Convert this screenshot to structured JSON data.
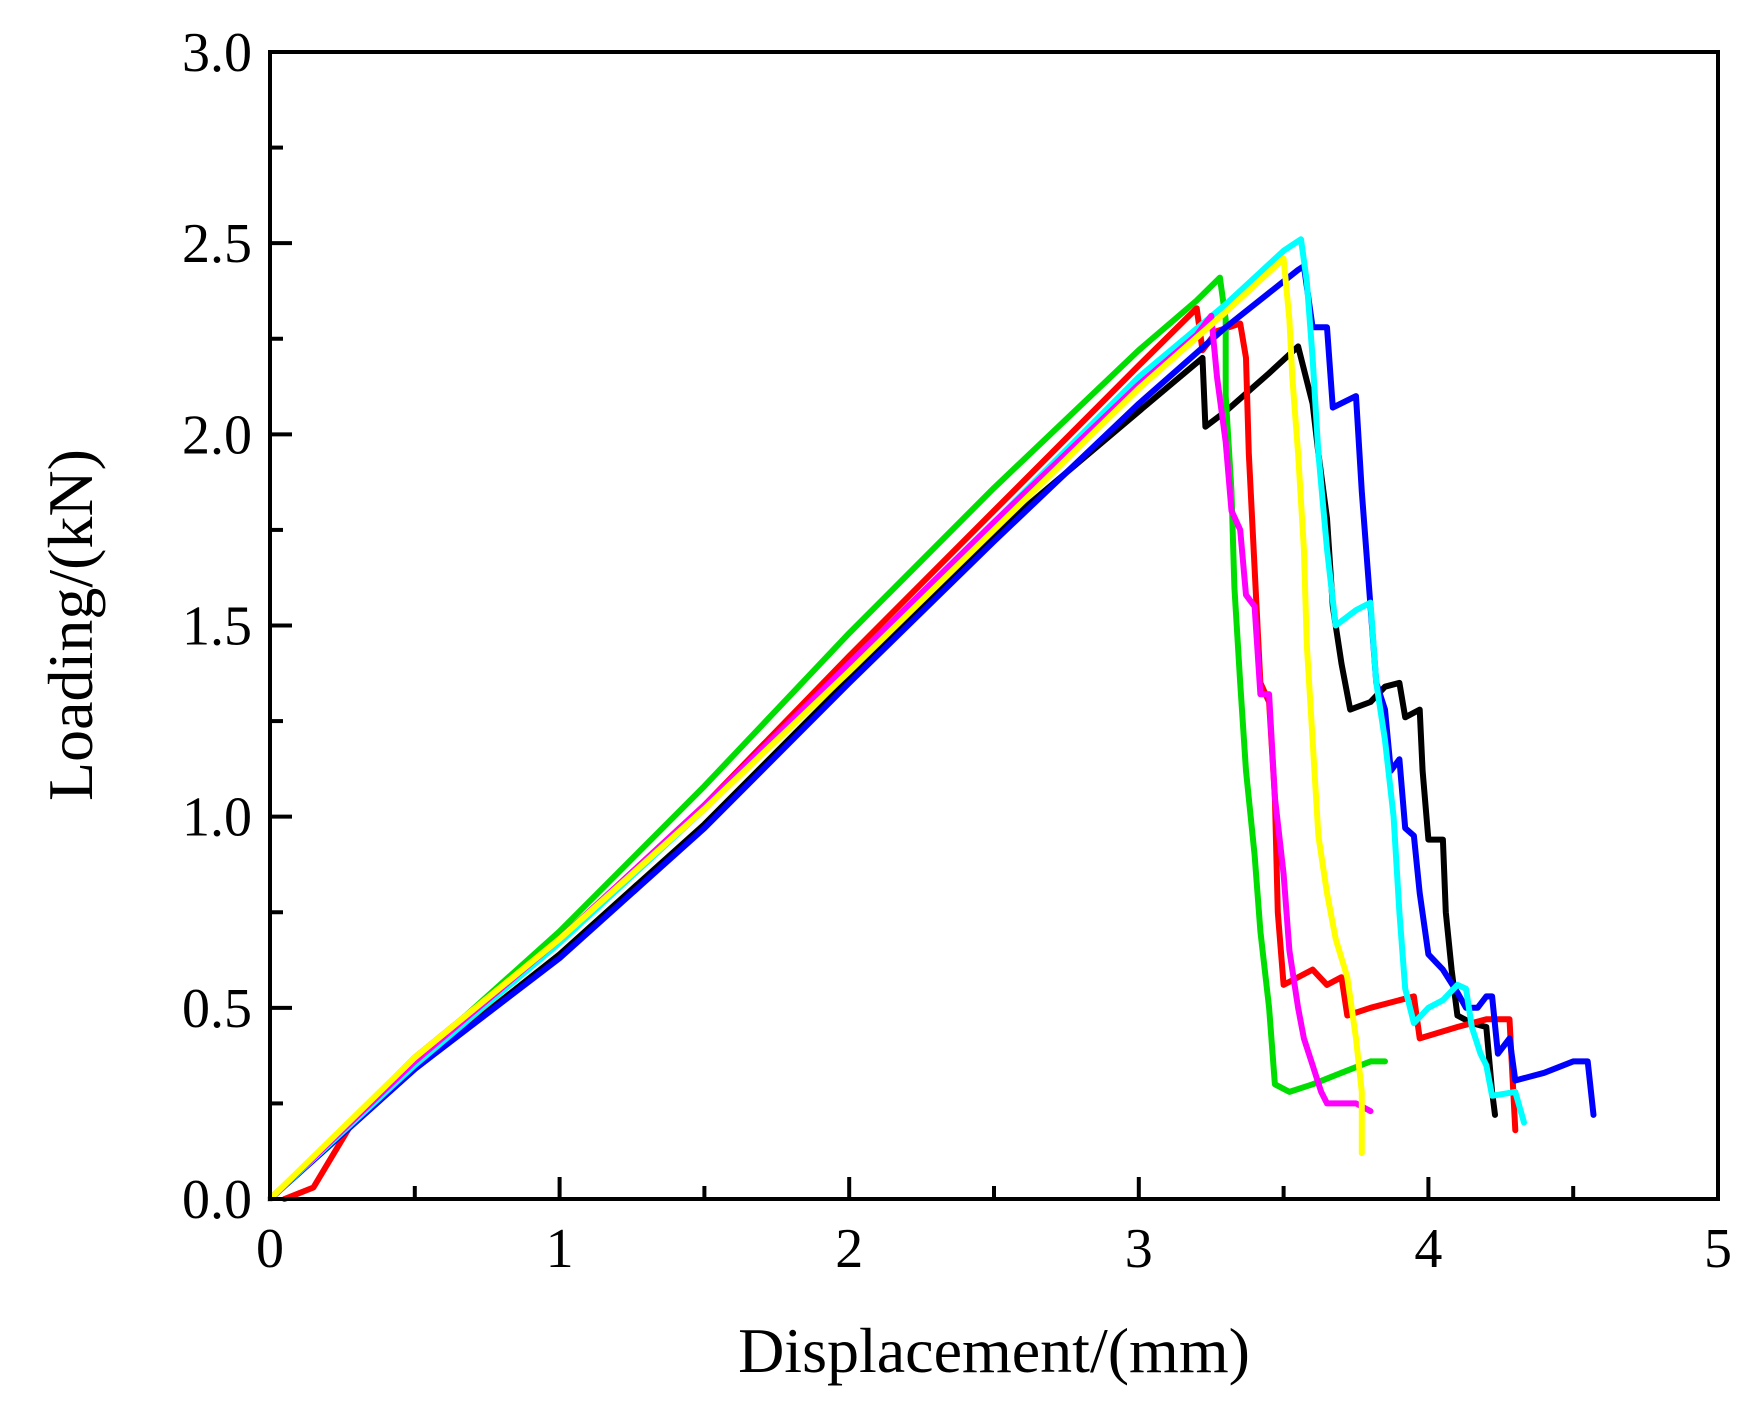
{
  "chart_data": {
    "type": "line",
    "title": "",
    "xlabel": "Displacement/(mm)",
    "ylabel": "Loading/(kN)",
    "xlim": [
      0,
      5
    ],
    "ylim": [
      0,
      3
    ],
    "xticks": [
      0,
      1,
      2,
      3,
      4,
      5
    ],
    "yticks": [
      0.0,
      0.5,
      1.0,
      1.5,
      2.0,
      2.5,
      3.0
    ],
    "xtick_labels": [
      "0",
      "1",
      "2",
      "3",
      "4",
      "5"
    ],
    "ytick_labels": [
      "0.0",
      "0.5",
      "1.0",
      "1.5",
      "2.0",
      "2.5",
      "3.0"
    ],
    "grid": false,
    "legend": "none",
    "series": [
      {
        "name": "black",
        "color": "#000000",
        "points": [
          [
            0,
            0
          ],
          [
            0.5,
            0.34
          ],
          [
            1,
            0.64
          ],
          [
            1.5,
            0.98
          ],
          [
            2,
            1.36
          ],
          [
            2.5,
            1.74
          ],
          [
            3,
            2.06
          ],
          [
            3.22,
            2.2
          ],
          [
            3.23,
            2.02
          ],
          [
            3.3,
            2.06
          ],
          [
            3.45,
            2.16
          ],
          [
            3.55,
            2.23
          ],
          [
            3.6,
            2.08
          ],
          [
            3.62,
            1.95
          ],
          [
            3.65,
            1.78
          ],
          [
            3.67,
            1.55
          ],
          [
            3.7,
            1.4
          ],
          [
            3.73,
            1.28
          ],
          [
            3.8,
            1.3
          ],
          [
            3.85,
            1.34
          ],
          [
            3.9,
            1.35
          ],
          [
            3.92,
            1.26
          ],
          [
            3.97,
            1.28
          ],
          [
            3.98,
            1.12
          ],
          [
            4.0,
            0.94
          ],
          [
            4.05,
            0.94
          ],
          [
            4.06,
            0.75
          ],
          [
            4.08,
            0.6
          ],
          [
            4.1,
            0.48
          ],
          [
            4.15,
            0.46
          ],
          [
            4.2,
            0.45
          ],
          [
            4.22,
            0.28
          ],
          [
            4.23,
            0.22
          ]
        ]
      },
      {
        "name": "red",
        "color": "#ff0000",
        "points": [
          [
            0.05,
            0
          ],
          [
            0.15,
            0.03
          ],
          [
            0.3,
            0.22
          ],
          [
            0.5,
            0.37
          ],
          [
            1,
            0.68
          ],
          [
            1.5,
            1.03
          ],
          [
            2,
            1.42
          ],
          [
            2.5,
            1.8
          ],
          [
            3,
            2.18
          ],
          [
            3.2,
            2.33
          ],
          [
            3.22,
            2.22
          ],
          [
            3.27,
            2.27
          ],
          [
            3.35,
            2.29
          ],
          [
            3.37,
            2.2
          ],
          [
            3.38,
            1.95
          ],
          [
            3.4,
            1.65
          ],
          [
            3.42,
            1.35
          ],
          [
            3.45,
            1.3
          ],
          [
            3.47,
            1.05
          ],
          [
            3.48,
            0.75
          ],
          [
            3.5,
            0.56
          ],
          [
            3.6,
            0.6
          ],
          [
            3.65,
            0.56
          ],
          [
            3.7,
            0.58
          ],
          [
            3.72,
            0.48
          ],
          [
            3.8,
            0.5
          ],
          [
            3.9,
            0.52
          ],
          [
            3.95,
            0.53
          ],
          [
            3.97,
            0.42
          ],
          [
            4.1,
            0.45
          ],
          [
            4.2,
            0.47
          ],
          [
            4.28,
            0.47
          ],
          [
            4.3,
            0.18
          ]
        ]
      },
      {
        "name": "green",
        "color": "#00dd00",
        "points": [
          [
            0,
            0
          ],
          [
            0.5,
            0.36
          ],
          [
            1,
            0.7
          ],
          [
            1.5,
            1.08
          ],
          [
            2,
            1.48
          ],
          [
            2.5,
            1.86
          ],
          [
            3,
            2.22
          ],
          [
            3.2,
            2.35
          ],
          [
            3.28,
            2.41
          ],
          [
            3.3,
            2.3
          ],
          [
            3.3,
            2.1
          ],
          [
            3.32,
            1.85
          ],
          [
            3.33,
            1.6
          ],
          [
            3.35,
            1.35
          ],
          [
            3.37,
            1.12
          ],
          [
            3.4,
            0.9
          ],
          [
            3.42,
            0.7
          ],
          [
            3.45,
            0.5
          ],
          [
            3.47,
            0.3
          ],
          [
            3.52,
            0.28
          ],
          [
            3.6,
            0.3
          ],
          [
            3.7,
            0.33
          ],
          [
            3.8,
            0.36
          ],
          [
            3.85,
            0.36
          ]
        ]
      },
      {
        "name": "blue",
        "color": "#0000ff",
        "points": [
          [
            0,
            0
          ],
          [
            0.5,
            0.34
          ],
          [
            1,
            0.63
          ],
          [
            1.5,
            0.97
          ],
          [
            2,
            1.35
          ],
          [
            2.5,
            1.72
          ],
          [
            3,
            2.08
          ],
          [
            3.3,
            2.28
          ],
          [
            3.5,
            2.4
          ],
          [
            3.55,
            2.43
          ],
          [
            3.57,
            2.44
          ],
          [
            3.6,
            2.28
          ],
          [
            3.65,
            2.28
          ],
          [
            3.67,
            2.07
          ],
          [
            3.75,
            2.1
          ],
          [
            3.77,
            1.85
          ],
          [
            3.8,
            1.55
          ],
          [
            3.82,
            1.35
          ],
          [
            3.85,
            1.28
          ],
          [
            3.87,
            1.12
          ],
          [
            3.9,
            1.15
          ],
          [
            3.92,
            0.97
          ],
          [
            3.95,
            0.95
          ],
          [
            3.97,
            0.8
          ],
          [
            4.0,
            0.64
          ],
          [
            4.05,
            0.6
          ],
          [
            4.1,
            0.54
          ],
          [
            4.13,
            0.5
          ],
          [
            4.17,
            0.5
          ],
          [
            4.2,
            0.53
          ],
          [
            4.22,
            0.53
          ],
          [
            4.24,
            0.38
          ],
          [
            4.28,
            0.42
          ],
          [
            4.3,
            0.31
          ],
          [
            4.4,
            0.33
          ],
          [
            4.5,
            0.36
          ],
          [
            4.55,
            0.36
          ],
          [
            4.57,
            0.22
          ]
        ]
      },
      {
        "name": "cyan",
        "color": "#00ffff",
        "points": [
          [
            0,
            0
          ],
          [
            0.5,
            0.35
          ],
          [
            1,
            0.67
          ],
          [
            1.5,
            1.02
          ],
          [
            2,
            1.4
          ],
          [
            2.5,
            1.77
          ],
          [
            3,
            2.15
          ],
          [
            3.3,
            2.34
          ],
          [
            3.5,
            2.48
          ],
          [
            3.56,
            2.51
          ],
          [
            3.58,
            2.4
          ],
          [
            3.6,
            2.2
          ],
          [
            3.62,
            1.95
          ],
          [
            3.65,
            1.7
          ],
          [
            3.68,
            1.5
          ],
          [
            3.75,
            1.54
          ],
          [
            3.8,
            1.56
          ],
          [
            3.82,
            1.35
          ],
          [
            3.85,
            1.2
          ],
          [
            3.88,
            1.0
          ],
          [
            3.9,
            0.75
          ],
          [
            3.92,
            0.55
          ],
          [
            3.95,
            0.46
          ],
          [
            4.0,
            0.5
          ],
          [
            4.05,
            0.52
          ],
          [
            4.1,
            0.56
          ],
          [
            4.13,
            0.55
          ],
          [
            4.15,
            0.45
          ],
          [
            4.18,
            0.38
          ],
          [
            4.2,
            0.35
          ],
          [
            4.22,
            0.27
          ],
          [
            4.3,
            0.28
          ],
          [
            4.33,
            0.2
          ]
        ]
      },
      {
        "name": "magenta",
        "color": "#ff00ff",
        "points": [
          [
            0,
            0
          ],
          [
            0.5,
            0.36
          ],
          [
            1,
            0.68
          ],
          [
            1.5,
            1.03
          ],
          [
            2,
            1.4
          ],
          [
            2.5,
            1.77
          ],
          [
            3,
            2.13
          ],
          [
            3.2,
            2.26
          ],
          [
            3.25,
            2.31
          ],
          [
            3.27,
            2.15
          ],
          [
            3.3,
            1.98
          ],
          [
            3.32,
            1.8
          ],
          [
            3.35,
            1.75
          ],
          [
            3.37,
            1.58
          ],
          [
            3.4,
            1.55
          ],
          [
            3.42,
            1.32
          ],
          [
            3.45,
            1.32
          ],
          [
            3.47,
            1.05
          ],
          [
            3.5,
            0.85
          ],
          [
            3.52,
            0.65
          ],
          [
            3.55,
            0.5
          ],
          [
            3.57,
            0.42
          ],
          [
            3.6,
            0.35
          ],
          [
            3.63,
            0.28
          ],
          [
            3.65,
            0.25
          ],
          [
            3.75,
            0.25
          ],
          [
            3.8,
            0.23
          ]
        ]
      },
      {
        "name": "yellow",
        "color": "#ffff00",
        "points": [
          [
            0,
            0
          ],
          [
            0.5,
            0.37
          ],
          [
            1,
            0.68
          ],
          [
            1.5,
            1.02
          ],
          [
            2,
            1.38
          ],
          [
            2.5,
            1.75
          ],
          [
            3,
            2.12
          ],
          [
            3.3,
            2.32
          ],
          [
            3.5,
            2.46
          ],
          [
            3.52,
            2.3
          ],
          [
            3.53,
            2.15
          ],
          [
            3.55,
            1.95
          ],
          [
            3.57,
            1.7
          ],
          [
            3.58,
            1.45
          ],
          [
            3.6,
            1.2
          ],
          [
            3.62,
            0.95
          ],
          [
            3.65,
            0.8
          ],
          [
            3.68,
            0.68
          ],
          [
            3.72,
            0.58
          ],
          [
            3.75,
            0.42
          ],
          [
            3.77,
            0.28
          ],
          [
            3.77,
            0.12
          ]
        ]
      }
    ]
  }
}
